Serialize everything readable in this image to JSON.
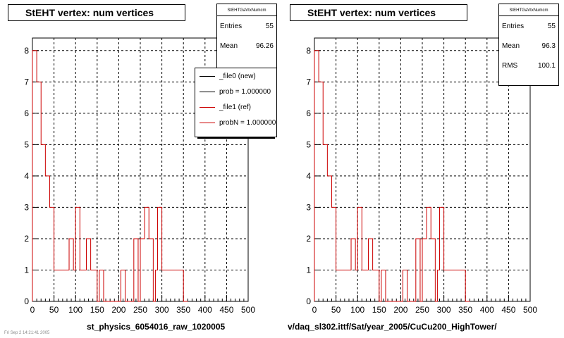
{
  "panels": [
    {
      "title": "StEHT  vertex: num vertices",
      "stats": {
        "name": "StEHTGaVtxNumcm",
        "rows": [
          {
            "label": "Entries",
            "value": "55"
          },
          {
            "label": "Mean",
            "value": "96.26"
          }
        ]
      },
      "bottom_label": "st_physics_6054016_raw_1020005"
    },
    {
      "title": "StEHT  vertex: num vertices",
      "stats": {
        "name": "StEHTGaVtxNumcm",
        "rows": [
          {
            "label": "Entries",
            "value": "55"
          },
          {
            "label": "Mean",
            "value": "96.3"
          },
          {
            "label": "RMS",
            "value": "100.1"
          }
        ]
      },
      "bottom_label": "v/daq_sl302.ittf/Sat/year_2005/CuCu200_HighTower/"
    }
  ],
  "legend": {
    "items": [
      {
        "label": "_file0 (new)",
        "color": "#000000"
      },
      {
        "label": "prob = 1.000000",
        "color": "#000000"
      },
      {
        "label": "_file1 (ref)",
        "color": "#cc0000"
      },
      {
        "label": "probN = 1.000000",
        "color": "#cc0000"
      }
    ]
  },
  "corner_text": "Fri Sep  2 14:21:41 2005",
  "chart_data": [
    {
      "type": "histogram",
      "title": "StEHT  vertex: num vertices",
      "xlabel": "",
      "ylabel": "",
      "xlim": [
        0,
        500
      ],
      "ylim": [
        0,
        8.4
      ],
      "xticks": [
        0,
        50,
        100,
        150,
        200,
        250,
        300,
        350,
        400,
        450,
        500
      ],
      "yticks": [
        0,
        1,
        2,
        3,
        4,
        5,
        6,
        7,
        8
      ],
      "grid": true,
      "bin_width": 5,
      "series": [
        {
          "name": "_file1 (ref)",
          "color": "#cc0000",
          "bins": [
            [
              0,
              8
            ],
            [
              5,
              8
            ],
            [
              10,
              7
            ],
            [
              15,
              7
            ],
            [
              20,
              5
            ],
            [
              25,
              5
            ],
            [
              30,
              4
            ],
            [
              35,
              4
            ],
            [
              40,
              3
            ],
            [
              45,
              3
            ],
            [
              50,
              1
            ],
            [
              55,
              1
            ],
            [
              60,
              1
            ],
            [
              65,
              1
            ],
            [
              70,
              1
            ],
            [
              75,
              1
            ],
            [
              80,
              1
            ],
            [
              85,
              2
            ],
            [
              90,
              2
            ],
            [
              95,
              1
            ],
            [
              100,
              3
            ],
            [
              105,
              3
            ],
            [
              110,
              1
            ],
            [
              115,
              1
            ],
            [
              120,
              1
            ],
            [
              125,
              2
            ],
            [
              130,
              2
            ],
            [
              135,
              1
            ],
            [
              140,
              1
            ],
            [
              145,
              1
            ],
            [
              150,
              0
            ],
            [
              155,
              1
            ],
            [
              160,
              1
            ],
            [
              165,
              0
            ],
            [
              170,
              0
            ],
            [
              175,
              0
            ],
            [
              180,
              0
            ],
            [
              185,
              0
            ],
            [
              190,
              0
            ],
            [
              195,
              0
            ],
            [
              200,
              0
            ],
            [
              205,
              1
            ],
            [
              210,
              1
            ],
            [
              215,
              0
            ],
            [
              220,
              0
            ],
            [
              225,
              0
            ],
            [
              230,
              0
            ],
            [
              235,
              2
            ],
            [
              240,
              2
            ],
            [
              245,
              0
            ],
            [
              250,
              2
            ],
            [
              255,
              2
            ],
            [
              260,
              3
            ],
            [
              265,
              3
            ],
            [
              270,
              2
            ],
            [
              275,
              2
            ],
            [
              280,
              0
            ],
            [
              285,
              1
            ],
            [
              290,
              3
            ],
            [
              295,
              3
            ],
            [
              300,
              1
            ],
            [
              305,
              1
            ],
            [
              310,
              1
            ],
            [
              315,
              1
            ],
            [
              320,
              1
            ],
            [
              325,
              1
            ],
            [
              330,
              1
            ],
            [
              335,
              1
            ],
            [
              340,
              1
            ],
            [
              345,
              1
            ],
            [
              350,
              0
            ],
            [
              355,
              0
            ]
          ]
        }
      ]
    },
    {
      "type": "histogram",
      "title": "StEHT  vertex: num vertices",
      "xlabel": "",
      "ylabel": "",
      "xlim": [
        0,
        500
      ],
      "ylim": [
        0,
        8.4
      ],
      "xticks": [
        0,
        50,
        100,
        150,
        200,
        250,
        300,
        350,
        400,
        450,
        500
      ],
      "yticks": [
        0,
        1,
        2,
        3,
        4,
        5,
        6,
        7,
        8
      ],
      "grid": true,
      "bin_width": 5,
      "series": [
        {
          "name": "_file1 (ref)",
          "color": "#cc0000",
          "bins": [
            [
              0,
              8
            ],
            [
              5,
              8
            ],
            [
              10,
              7
            ],
            [
              15,
              7
            ],
            [
              20,
              5
            ],
            [
              25,
              5
            ],
            [
              30,
              4
            ],
            [
              35,
              4
            ],
            [
              40,
              3
            ],
            [
              45,
              3
            ],
            [
              50,
              1
            ],
            [
              55,
              1
            ],
            [
              60,
              1
            ],
            [
              65,
              1
            ],
            [
              70,
              1
            ],
            [
              75,
              1
            ],
            [
              80,
              1
            ],
            [
              85,
              2
            ],
            [
              90,
              2
            ],
            [
              95,
              1
            ],
            [
              100,
              3
            ],
            [
              105,
              3
            ],
            [
              110,
              1
            ],
            [
              115,
              1
            ],
            [
              120,
              1
            ],
            [
              125,
              2
            ],
            [
              130,
              2
            ],
            [
              135,
              1
            ],
            [
              140,
              1
            ],
            [
              145,
              1
            ],
            [
              150,
              0
            ],
            [
              155,
              1
            ],
            [
              160,
              1
            ],
            [
              165,
              0
            ],
            [
              170,
              0
            ],
            [
              175,
              0
            ],
            [
              180,
              0
            ],
            [
              185,
              0
            ],
            [
              190,
              0
            ],
            [
              195,
              0
            ],
            [
              200,
              0
            ],
            [
              205,
              1
            ],
            [
              210,
              1
            ],
            [
              215,
              0
            ],
            [
              220,
              0
            ],
            [
              225,
              0
            ],
            [
              230,
              0
            ],
            [
              235,
              2
            ],
            [
              240,
              2
            ],
            [
              245,
              0
            ],
            [
              250,
              2
            ],
            [
              255,
              2
            ],
            [
              260,
              3
            ],
            [
              265,
              3
            ],
            [
              270,
              2
            ],
            [
              275,
              2
            ],
            [
              280,
              0
            ],
            [
              285,
              1
            ],
            [
              290,
              3
            ],
            [
              295,
              3
            ],
            [
              300,
              1
            ],
            [
              305,
              1
            ],
            [
              310,
              1
            ],
            [
              315,
              1
            ],
            [
              320,
              1
            ],
            [
              325,
              1
            ],
            [
              330,
              1
            ],
            [
              335,
              1
            ],
            [
              340,
              1
            ],
            [
              345,
              1
            ],
            [
              350,
              0
            ],
            [
              355,
              0
            ]
          ]
        }
      ]
    }
  ]
}
